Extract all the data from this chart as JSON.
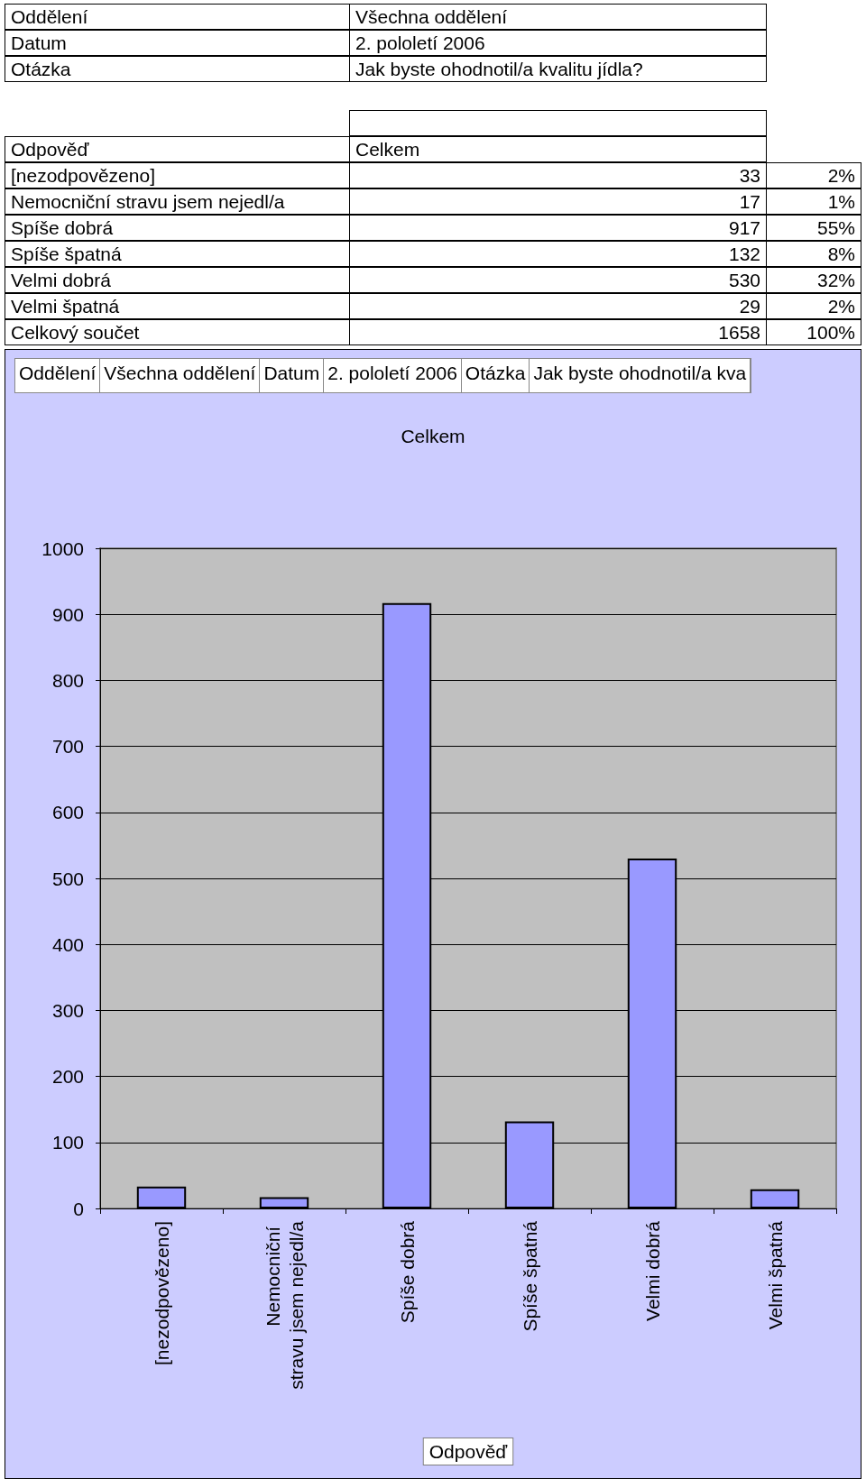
{
  "chart_data": {
    "type": "bar",
    "title": "Celkem",
    "xlabel": "Odpověď",
    "categories": [
      "[nezodpovězeno]",
      "Nemocniční stravu jsem nejedl/a",
      "Spíše dobrá",
      "Spíše špatná",
      "Velmi dobrá",
      "Velmi špatná"
    ],
    "values": [
      33,
      17,
      917,
      132,
      530,
      29
    ],
    "color": "#9999ff",
    "ylim": [
      0,
      1000
    ],
    "yticks": [
      0,
      100,
      200,
      300,
      400,
      500,
      600,
      700,
      800,
      900,
      {
        "value": 1000,
        "label": "1000"
      }
    ],
    "grid": "y",
    "annotations": [
      "Oddělení",
      "Všechna oddělení",
      "Datum",
      "2. pololetí 2006",
      "Otázka",
      "Jak byste ohodnotil/a kvalitu jídla?",
      "33",
      "17",
      "917",
      "132",
      "530",
      "29",
      "2%",
      "1%",
      "55%",
      "8%",
      "32%",
      "2%",
      "Celkový součet",
      "1658",
      "100%",
      "Oddělení",
      "Všechna oddělení",
      "Datum",
      "2. pololetí 2006",
      "Otázka",
      "Jak byste ohodnotil/a kva"
    ]
  }
}
